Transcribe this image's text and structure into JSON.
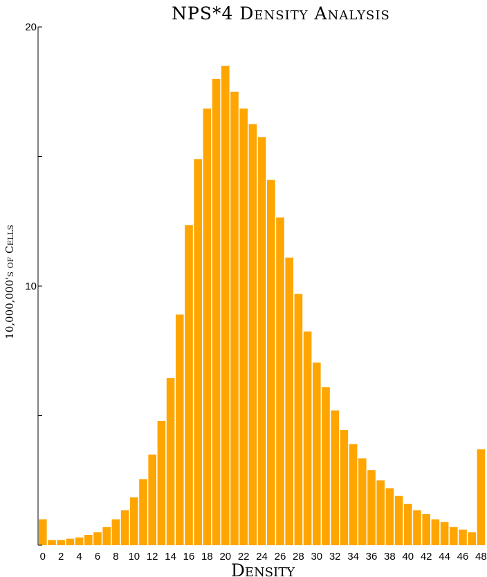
{
  "chart_data": {
    "type": "bar",
    "title": "NPS*4 Density Analysis",
    "xlabel": "Density",
    "ylabel": "10,000,000's of Cells",
    "color": "#FFA500",
    "ylim": [
      0,
      20
    ],
    "y_ticks": [
      {
        "value": 20,
        "label": "20"
      },
      {
        "value": 15,
        "label": ""
      },
      {
        "value": 10,
        "label": "10"
      },
      {
        "value": 5,
        "label": ""
      },
      {
        "value": 0,
        "label": ""
      }
    ],
    "x_tick_labels": [
      "0",
      "2",
      "4",
      "6",
      "8",
      "10",
      "12",
      "14",
      "16",
      "18",
      "20",
      "22",
      "24",
      "26",
      "28",
      "30",
      "32",
      "34",
      "36",
      "38",
      "40",
      "42",
      "44",
      "46",
      "48"
    ],
    "x": [
      0,
      1,
      2,
      3,
      4,
      5,
      6,
      7,
      8,
      9,
      10,
      11,
      12,
      13,
      14,
      15,
      16,
      17,
      18,
      19,
      20,
      21,
      22,
      23,
      24,
      25,
      26,
      27,
      28,
      29,
      30,
      31,
      32,
      33,
      34,
      35,
      36,
      37,
      38,
      39,
      40,
      41,
      42,
      43,
      44,
      45,
      46,
      47,
      48
    ],
    "values": [
      1.0,
      0.2,
      0.2,
      0.25,
      0.3,
      0.4,
      0.5,
      0.7,
      1.0,
      1.35,
      1.85,
      2.55,
      3.5,
      4.8,
      6.45,
      8.9,
      12.35,
      14.9,
      16.85,
      18.0,
      18.5,
      17.5,
      16.85,
      16.25,
      15.75,
      14.1,
      12.65,
      11.1,
      9.7,
      8.25,
      7.05,
      6.1,
      5.2,
      4.45,
      3.9,
      3.35,
      2.9,
      2.5,
      2.2,
      1.9,
      1.6,
      1.35,
      1.2,
      1.0,
      0.9,
      0.7,
      0.6,
      0.5,
      3.7
    ]
  }
}
